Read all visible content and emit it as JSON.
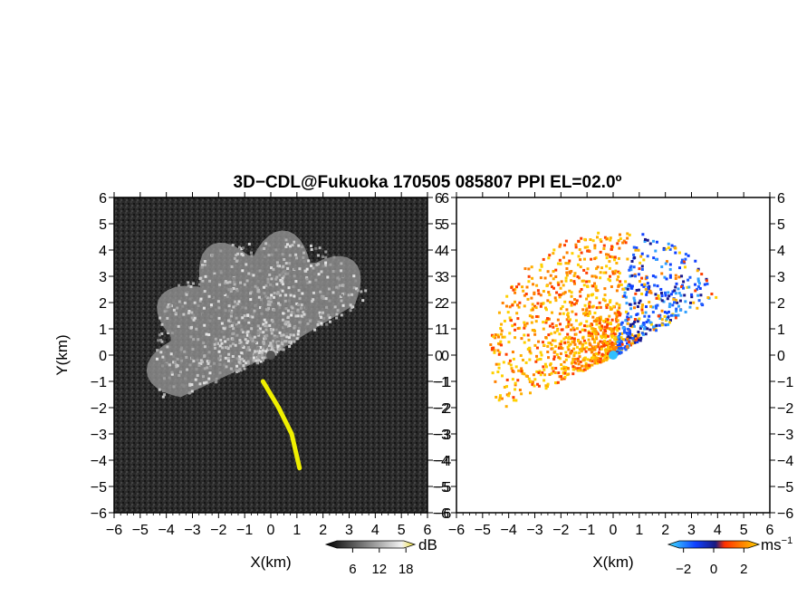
{
  "title": "3D−CDL@Fukuoka 170505 085807 PPI EL=02.0º",
  "chart_data": [
    {
      "type": "heatmap",
      "panel": "left",
      "quantity": "backscatter intensity",
      "xlabel": "X(km)",
      "ylabel": "Y(km)",
      "xlim": [
        -6,
        6
      ],
      "ylim": [
        -6,
        6
      ],
      "xticks": [
        "−6",
        "−5",
        "−4",
        "−3",
        "−2",
        "−1",
        "0",
        "1",
        "2",
        "3",
        "4",
        "5",
        "6"
      ],
      "yticks": [
        "−6",
        "−5",
        "−4",
        "−3",
        "−2",
        "−1",
        "0",
        "1",
        "2",
        "3",
        "4",
        "5",
        "6"
      ],
      "colorbar": {
        "unit": "dB",
        "ticks": [
          "6",
          "12",
          "18"
        ],
        "tick_values": [
          6,
          12,
          18
        ],
        "range": [
          0,
          20
        ],
        "colors": [
          "#000000",
          "#ffffff",
          "#f0e030"
        ]
      },
      "colors": {
        "background": "#202020",
        "echo": "#b0b0b0",
        "strong_echo": "#f0f000"
      },
      "features": {
        "sector_azimuth_deg": [
          245,
          60
        ],
        "range_km": 4.8,
        "strong_echo_band": [
          [
            -0.3,
            -1.0
          ],
          [
            0.3,
            -2.0
          ],
          [
            0.8,
            -3.0
          ],
          [
            1.1,
            -4.3
          ]
        ]
      }
    },
    {
      "type": "heatmap",
      "panel": "right",
      "quantity": "radial velocity",
      "xlabel": "X(km)",
      "ylabel": "",
      "xlim": [
        -6,
        6
      ],
      "ylim": [
        -6,
        6
      ],
      "xticks": [
        "−6",
        "−5",
        "−4",
        "−3",
        "−2",
        "−1",
        "0",
        "1",
        "2",
        "3",
        "4",
        "5",
        "6"
      ],
      "yticks": [
        "−6",
        "−5",
        "−4",
        "−3",
        "−2",
        "−1",
        "0",
        "1",
        "2",
        "3",
        "4",
        "5",
        "6"
      ],
      "colorbar": {
        "unit": "ms",
        "unit_exp": "−1",
        "ticks": [
          "−2",
          "0",
          "2"
        ],
        "tick_values": [
          -2,
          0,
          2
        ],
        "range": [
          -3,
          3
        ],
        "colors": [
          "#30d0ff",
          "#1040ff",
          "#ff4000",
          "#ffd000"
        ]
      },
      "colors": {
        "background": "#ffffff",
        "receding": "#ffb000",
        "approaching": "#1050ff"
      },
      "features": {
        "westward_sector_sign": "positive",
        "eastward_sector_sign": "negative"
      }
    }
  ]
}
